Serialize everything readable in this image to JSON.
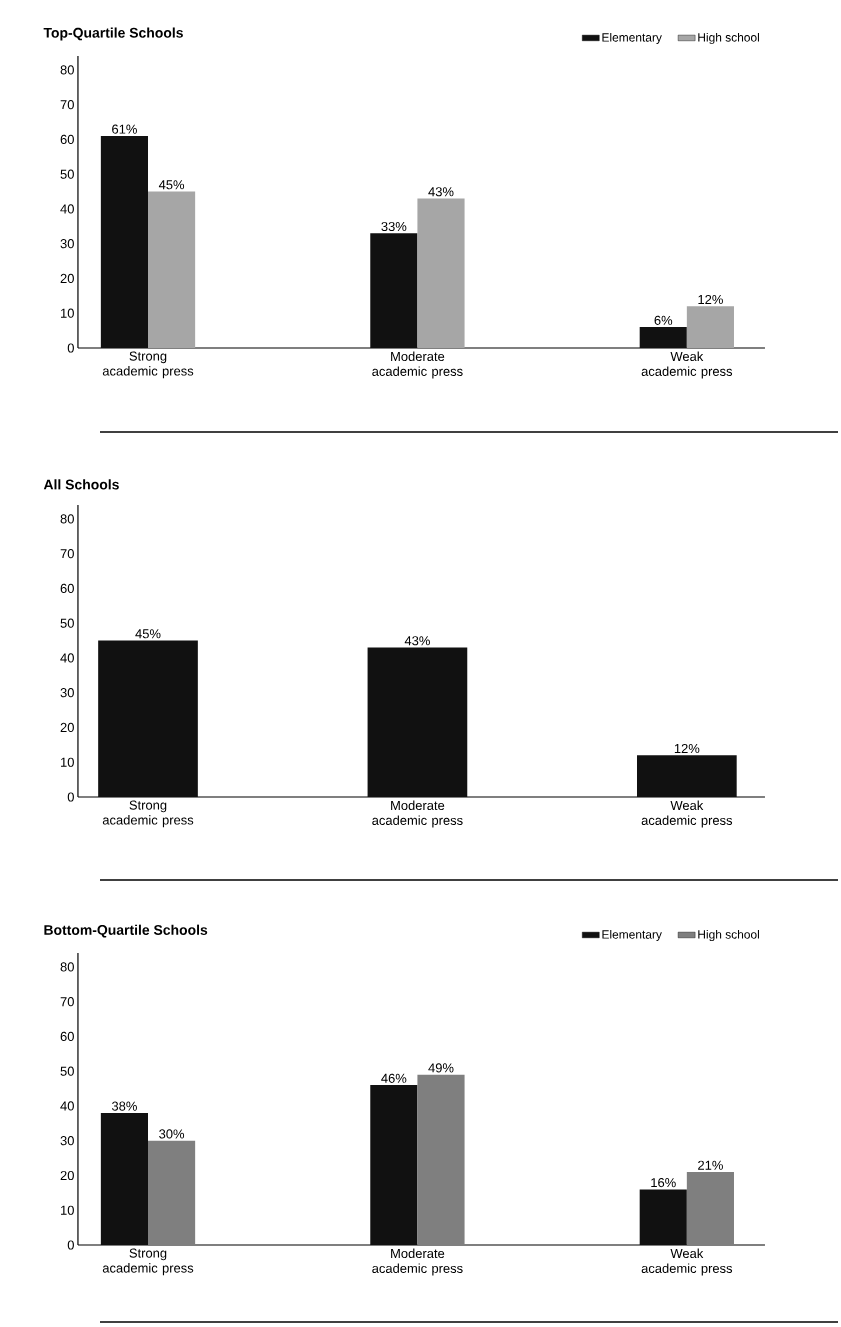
{
  "chart_data": [
    {
      "type": "bar",
      "title": "Top-Quartile Schools",
      "categories": [
        "Strong academic press",
        "Moderate academic press",
        "Weak academic press"
      ],
      "ylim": [
        0,
        84
      ],
      "yticks": [
        0,
        10,
        20,
        30,
        40,
        50,
        60,
        70,
        80
      ],
      "legend": "top right",
      "grid": false,
      "series": [
        {
          "name": "Elementary",
          "color": "#111111",
          "values": [
            61,
            33,
            6
          ],
          "value_labels": [
            "61%",
            "33%",
            "6%"
          ]
        },
        {
          "name": "High school",
          "color": "#a6a6a6",
          "values": [
            45,
            43,
            12
          ],
          "value_labels": [
            "45%",
            "43%",
            "12%"
          ]
        }
      ]
    },
    {
      "type": "bar",
      "title": "All Schools",
      "categories": [
        "Strong academic press",
        "Moderate academic press",
        "Weak academic press"
      ],
      "ylim": [
        0,
        84
      ],
      "yticks": [
        0,
        10,
        20,
        30,
        40,
        50,
        60,
        70,
        80
      ],
      "legend": false,
      "grid": false,
      "series": [
        {
          "color": "#111111",
          "values": [
            45,
            43,
            12
          ],
          "value_labels": [
            "45%",
            "43%",
            "12%"
          ]
        }
      ]
    },
    {
      "type": "bar",
      "title": "Bottom-Quartile Schools",
      "categories": [
        "Strong academic press",
        "Moderate academic press",
        "Weak academic press"
      ],
      "ylim": [
        0,
        84
      ],
      "yticks": [
        0,
        10,
        20,
        30,
        40,
        50,
        60,
        70,
        80
      ],
      "legend": "top right",
      "grid": false,
      "series": [
        {
          "name": "Elementary",
          "color": "#111111",
          "values": [
            38,
            46,
            16
          ],
          "value_labels": [
            "38%",
            "46%",
            "16%"
          ]
        },
        {
          "name": "High school",
          "color": "#7f7f7f",
          "values": [
            30,
            49,
            21
          ],
          "value_labels": [
            "30%",
            "49%",
            "21%"
          ]
        }
      ]
    }
  ]
}
